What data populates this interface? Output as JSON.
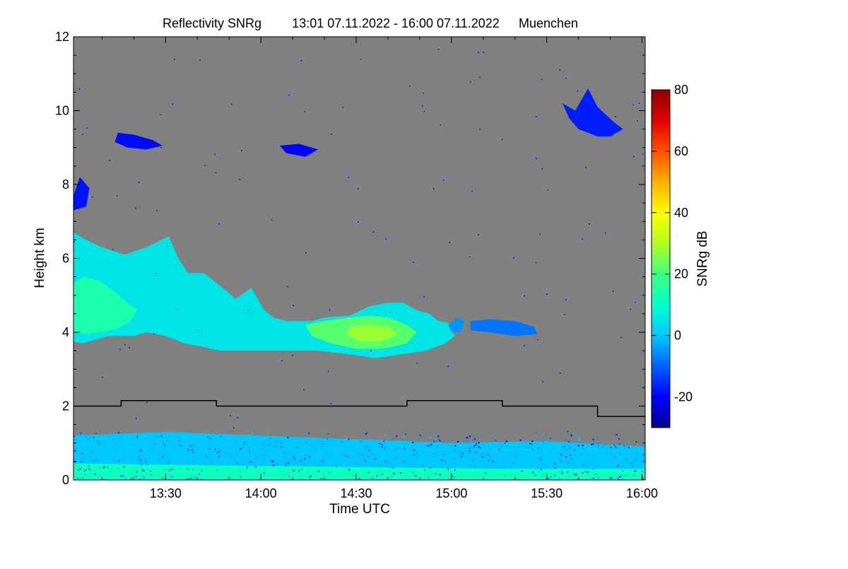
{
  "chart_data": {
    "type": "heatmap",
    "title": "Reflectivity SNRg",
    "time_range": "13:01 07.11.2022 - 16:00 07.11.2022",
    "location": "Muenchen",
    "xlabel": "Time UTC",
    "ylabel": "Height km",
    "colorbar_label": "SNRg dB",
    "background_color": "#808080",
    "x_unit": "minutes since 13:00 UTC",
    "xlim": [
      1,
      181
    ],
    "x_ticks": [
      {
        "value": 30,
        "label": "13:30"
      },
      {
        "value": 60,
        "label": "14:00"
      },
      {
        "value": 90,
        "label": "14:30"
      },
      {
        "value": 120,
        "label": "15:00"
      },
      {
        "value": 150,
        "label": "15:30"
      },
      {
        "value": 180,
        "label": "16:00"
      }
    ],
    "ylim": [
      0,
      12
    ],
    "y_ticks": [
      {
        "value": 0,
        "label": "0"
      },
      {
        "value": 2,
        "label": "2"
      },
      {
        "value": 4,
        "label": "4"
      },
      {
        "value": 6,
        "label": "6"
      },
      {
        "value": 8,
        "label": "8"
      },
      {
        "value": 10,
        "label": "10"
      },
      {
        "value": 12,
        "label": "12"
      }
    ],
    "colorbar": {
      "range": [
        -30,
        80
      ],
      "ticks": [
        {
          "value": -20,
          "label": "-20"
        },
        {
          "value": 0,
          "label": "0"
        },
        {
          "value": 20,
          "label": "20"
        },
        {
          "value": 40,
          "label": "40"
        },
        {
          "value": 60,
          "label": "60"
        },
        {
          "value": 80,
          "label": "80"
        }
      ],
      "colors": [
        "#00008b",
        "#0000ff",
        "#0060ff",
        "#00c8ff",
        "#00ffcc",
        "#40ff80",
        "#b0ff20",
        "#ffff00",
        "#ffb000",
        "#ff5000",
        "#e00000",
        "#8b0000"
      ]
    },
    "threshold_line": {
      "name": "freezing level",
      "color": "#000000",
      "steps": [
        {
          "x0": 1,
          "x1": 16,
          "y": 2.0
        },
        {
          "x0": 16,
          "x1": 46,
          "y": 2.15
        },
        {
          "x0": 46,
          "x1": 106,
          "y": 2.0
        },
        {
          "x0": 106,
          "x1": 136,
          "y": 2.15
        },
        {
          "x0": 136,
          "x1": 166,
          "y": 2.0
        },
        {
          "x0": 166,
          "x1": 181,
          "y": 1.72
        }
      ]
    },
    "echo_regions": [
      {
        "name": "main-cloud-layer",
        "snr_db": 5,
        "outline": [
          [
            1,
            6.7
          ],
          [
            5,
            6.5
          ],
          [
            10,
            6.3
          ],
          [
            17,
            6.1
          ],
          [
            24,
            6.3
          ],
          [
            31,
            6.6
          ],
          [
            34,
            6.0
          ],
          [
            37,
            5.6
          ],
          [
            42,
            5.6
          ],
          [
            48,
            5.2
          ],
          [
            52,
            4.9
          ],
          [
            57,
            5.2
          ],
          [
            61,
            4.6
          ],
          [
            64,
            4.4
          ],
          [
            68,
            4.3
          ],
          [
            76,
            4.3
          ],
          [
            80,
            4.4
          ],
          [
            88,
            4.45
          ],
          [
            94,
            4.7
          ],
          [
            100,
            4.8
          ],
          [
            105,
            4.8
          ],
          [
            109,
            4.6
          ],
          [
            113,
            4.5
          ],
          [
            116,
            4.3
          ],
          [
            119,
            4.25
          ],
          [
            121,
            3.9
          ],
          [
            118,
            3.7
          ],
          [
            112,
            3.5
          ],
          [
            104,
            3.4
          ],
          [
            96,
            3.3
          ],
          [
            88,
            3.4
          ],
          [
            78,
            3.5
          ],
          [
            70,
            3.5
          ],
          [
            60,
            3.5
          ],
          [
            52,
            3.5
          ],
          [
            47,
            3.5
          ],
          [
            42,
            3.6
          ],
          [
            36,
            3.7
          ],
          [
            30,
            3.9
          ],
          [
            24,
            4.0
          ],
          [
            20,
            3.9
          ],
          [
            16,
            3.9
          ],
          [
            12,
            3.9
          ],
          [
            8,
            3.8
          ],
          [
            4,
            3.7
          ],
          [
            1,
            3.75
          ]
        ]
      },
      {
        "name": "core-upper-left",
        "snr_db": 14,
        "outline": [
          [
            1,
            5.3
          ],
          [
            4,
            5.5
          ],
          [
            9,
            5.4
          ],
          [
            14,
            5.1
          ],
          [
            18,
            4.8
          ],
          [
            21,
            4.6
          ],
          [
            19,
            4.3
          ],
          [
            15,
            4.1
          ],
          [
            10,
            4.0
          ],
          [
            5,
            3.95
          ],
          [
            1,
            4.0
          ]
        ]
      },
      {
        "name": "core-middle",
        "snr_db": 22,
        "outline": [
          [
            74,
            4.2
          ],
          [
            80,
            4.3
          ],
          [
            88,
            4.4
          ],
          [
            94,
            4.45
          ],
          [
            100,
            4.4
          ],
          [
            106,
            4.2
          ],
          [
            109,
            4.0
          ],
          [
            106,
            3.7
          ],
          [
            98,
            3.55
          ],
          [
            90,
            3.55
          ],
          [
            82,
            3.7
          ],
          [
            76,
            3.9
          ]
        ]
      },
      {
        "name": "core-center",
        "snr_db": 28,
        "outline": [
          [
            88,
            4.15
          ],
          [
            94,
            4.2
          ],
          [
            100,
            4.15
          ],
          [
            103,
            3.95
          ],
          [
            98,
            3.75
          ],
          [
            91,
            3.75
          ],
          [
            87,
            3.95
          ]
        ]
      },
      {
        "name": "trailing-patch",
        "snr_db": -8,
        "outline": [
          [
            126,
            4.3
          ],
          [
            132,
            4.35
          ],
          [
            140,
            4.3
          ],
          [
            146,
            4.15
          ],
          [
            147,
            3.95
          ],
          [
            140,
            3.9
          ],
          [
            132,
            4.0
          ],
          [
            126,
            4.05
          ]
        ]
      },
      {
        "name": "small-patch",
        "snr_db": -5,
        "outline": [
          [
            119,
            4.2
          ],
          [
            122,
            4.4
          ],
          [
            124,
            4.3
          ],
          [
            123,
            4.0
          ],
          [
            120,
            4.0
          ]
        ]
      },
      {
        "name": "cirrus-right",
        "snr_db": -17,
        "outline": [
          [
            155,
            10.2
          ],
          [
            159,
            10.0
          ],
          [
            163,
            10.6
          ],
          [
            166,
            10.1
          ],
          [
            171,
            9.7
          ],
          [
            174,
            9.5
          ],
          [
            170,
            9.3
          ],
          [
            166,
            9.3
          ],
          [
            160,
            9.5
          ],
          [
            157,
            9.8
          ]
        ]
      },
      {
        "name": "cirrus-left",
        "snr_db": -19,
        "outline": [
          [
            15,
            9.4
          ],
          [
            20,
            9.35
          ],
          [
            26,
            9.2
          ],
          [
            29,
            9.05
          ],
          [
            24,
            8.95
          ],
          [
            18,
            9.0
          ],
          [
            14,
            9.15
          ]
        ]
      },
      {
        "name": "cirrus-center",
        "snr_db": -20,
        "outline": [
          [
            66,
            9.05
          ],
          [
            72,
            9.1
          ],
          [
            78,
            8.95
          ],
          [
            74,
            8.75
          ],
          [
            68,
            8.85
          ]
        ]
      },
      {
        "name": "high-left-patch",
        "snr_db": -18,
        "outline": [
          [
            1,
            7.7
          ],
          [
            3,
            8.2
          ],
          [
            6,
            7.9
          ],
          [
            5,
            7.4
          ],
          [
            1,
            7.3
          ]
        ]
      },
      {
        "name": "boundary-layer",
        "snr_db": 0,
        "outline": [
          [
            1,
            1.2
          ],
          [
            30,
            1.3
          ],
          [
            60,
            1.2
          ],
          [
            90,
            1.1
          ],
          [
            120,
            1.0
          ],
          [
            150,
            1.05
          ],
          [
            181,
            0.9
          ],
          [
            181,
            0.0
          ],
          [
            1,
            0.0
          ]
        ]
      },
      {
        "name": "boundary-layer-core",
        "snr_db": 12,
        "outline": [
          [
            1,
            0.45
          ],
          [
            40,
            0.4
          ],
          [
            90,
            0.35
          ],
          [
            140,
            0.3
          ],
          [
            181,
            0.3
          ],
          [
            181,
            0.0
          ],
          [
            1,
            0.0
          ]
        ]
      }
    ]
  }
}
